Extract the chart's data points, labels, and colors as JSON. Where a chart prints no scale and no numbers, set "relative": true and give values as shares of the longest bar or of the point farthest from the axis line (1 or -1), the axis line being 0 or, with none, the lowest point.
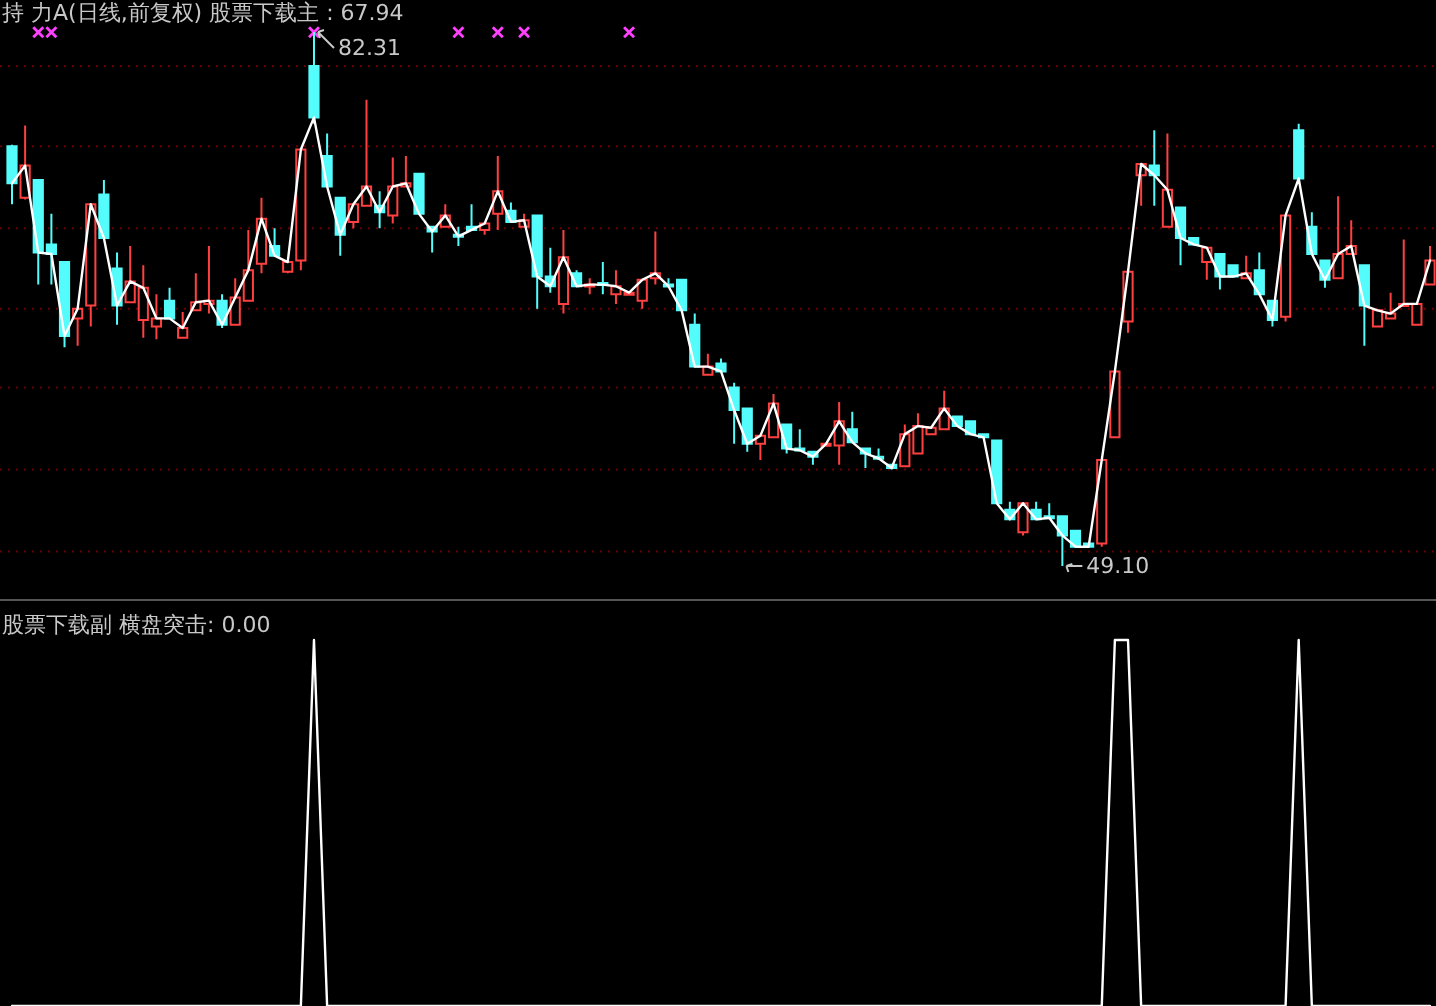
{
  "chart_data": [
    {
      "type": "candlestick",
      "title": "持 力A(日线,前复权) 股票下载主 : 67.94",
      "grid": true,
      "categories": [
        null,
        null,
        null,
        null,
        null,
        null,
        null,
        null,
        null,
        null,
        null,
        null,
        null,
        null,
        null,
        null,
        null,
        null,
        null,
        null,
        null,
        null,
        null,
        null,
        null,
        null,
        null,
        null,
        null,
        null,
        null,
        null,
        null,
        null,
        null,
        null,
        null,
        null,
        null,
        null,
        null,
        null,
        null,
        null,
        null,
        null,
        null,
        null,
        null,
        null,
        null,
        null,
        null,
        null,
        null,
        null,
        null,
        null,
        null,
        null,
        null,
        null,
        null,
        null,
        null,
        null,
        null,
        null,
        null,
        null,
        null,
        null,
        null,
        null,
        null,
        null,
        null,
        null,
        null,
        null,
        null,
        null,
        null,
        null,
        null,
        null,
        null,
        null,
        null,
        null,
        null,
        null,
        null,
        null,
        null,
        null,
        null,
        null,
        null,
        null,
        null,
        null,
        null,
        null,
        null,
        null,
        null,
        null,
        null
      ],
      "ohlc": [
        [
          75.2,
          75.3,
          71.6,
          72.9
        ],
        [
          72.0,
          76.5,
          71.9,
          74.0
        ],
        [
          73.1,
          73.1,
          66.6,
          68.6
        ],
        [
          69.1,
          71.0,
          66.6,
          68.5
        ],
        [
          68.0,
          68.0,
          62.7,
          63.4
        ],
        [
          64.5,
          65.1,
          62.8,
          65.1
        ],
        [
          65.3,
          71.6,
          64.0,
          71.6
        ],
        [
          72.2,
          73.1,
          69.5,
          69.5
        ],
        [
          67.6,
          68.6,
          64.1,
          65.3
        ],
        [
          65.5,
          69.0,
          65.5,
          66.8
        ],
        [
          64.4,
          67.8,
          63.3,
          66.4
        ],
        [
          64.0,
          66.0,
          63.2,
          64.5
        ],
        [
          65.6,
          66.4,
          64.5,
          64.5
        ],
        [
          63.3,
          64.9,
          63.3,
          63.9
        ],
        [
          65.0,
          67.3,
          65.0,
          65.5
        ],
        [
          65.4,
          69.0,
          64.8,
          65.6
        ],
        [
          65.6,
          66.0,
          63.9,
          64.1
        ],
        [
          64.1,
          67.0,
          64.1,
          65.8
        ],
        [
          65.6,
          70.0,
          65.6,
          67.5
        ],
        [
          67.9,
          72.0,
          67.3,
          70.7
        ],
        [
          69.0,
          70.1,
          68.4,
          68.4
        ],
        [
          67.4,
          68.0,
          67.3,
          68.0
        ],
        [
          68.1,
          75.0,
          67.5,
          75.0
        ],
        [
          80.2,
          82.31,
          76.6,
          77.0
        ],
        [
          74.6,
          76.0,
          72.7,
          72.7
        ],
        [
          72.0,
          72.0,
          68.4,
          69.7
        ],
        [
          70.5,
          71.6,
          70.1,
          71.6
        ],
        [
          71.5,
          78.1,
          71.5,
          72.7
        ],
        [
          71.5,
          72.4,
          70.1,
          71.1
        ],
        [
          70.9,
          74.5,
          70.4,
          72.7
        ],
        [
          72.7,
          74.6,
          72.7,
          72.9
        ],
        [
          73.5,
          73.5,
          71.0,
          71.0
        ],
        [
          70.2,
          70.2,
          68.6,
          69.9
        ],
        [
          70.2,
          71.6,
          70.2,
          70.9
        ],
        [
          69.7,
          70.2,
          69.0,
          69.6
        ],
        [
          70.2,
          71.6,
          70.0,
          70.0
        ],
        [
          70.0,
          70.4,
          69.7,
          70.4
        ],
        [
          71.0,
          74.6,
          70.0,
          72.4
        ],
        [
          71.2,
          71.7,
          70.5,
          70.5
        ],
        [
          70.2,
          71.0,
          70.2,
          70.6
        ],
        [
          70.9,
          70.9,
          65.1,
          67.1
        ],
        [
          67.1,
          68.9,
          66.1,
          66.5
        ],
        [
          65.4,
          70.0,
          64.8,
          68.3
        ],
        [
          67.3,
          67.5,
          66.5,
          66.5
        ],
        [
          66.5,
          67.0,
          66.0,
          66.6
        ],
        [
          66.7,
          68.0,
          66.0,
          66.6
        ],
        [
          66.0,
          67.5,
          65.4,
          66.5
        ],
        [
          66.0,
          66.1,
          66.0,
          66.1
        ],
        [
          65.6,
          66.9,
          65.1,
          66.9
        ],
        [
          67.0,
          69.9,
          66.6,
          67.3
        ],
        [
          66.6,
          67.0,
          66.5,
          66.5
        ],
        [
          66.9,
          66.9,
          65.0,
          65.0
        ],
        [
          64.1,
          64.8,
          61.5,
          61.5
        ],
        [
          61.0,
          62.3,
          61.0,
          61.5
        ],
        [
          61.7,
          62.0,
          61.2,
          61.2
        ],
        [
          60.2,
          60.5,
          56.7,
          58.8
        ],
        [
          58.9,
          58.9,
          56.2,
          56.7
        ],
        [
          56.7,
          57.2,
          55.7,
          57.2
        ],
        [
          57.1,
          59.8,
          57.1,
          59.2
        ],
        [
          57.9,
          57.9,
          56.1,
          56.4
        ],
        [
          56.4,
          57.6,
          56.3,
          56.3
        ],
        [
          56.2,
          56.2,
          55.4,
          55.9
        ],
        [
          56.6,
          56.7,
          56.6,
          56.7
        ],
        [
          56.6,
          59.3,
          55.4,
          58.1
        ],
        [
          57.6,
          58.7,
          56.8,
          56.8
        ],
        [
          56.4,
          56.4,
          55.2,
          56.1
        ],
        [
          55.9,
          56.4,
          55.7,
          55.8
        ],
        [
          55.4,
          55.4,
          55.1,
          55.2
        ],
        [
          55.3,
          57.9,
          55.3,
          57.3
        ],
        [
          56.1,
          58.6,
          56.1,
          57.8
        ],
        [
          57.3,
          57.7,
          57.3,
          57.7
        ],
        [
          57.6,
          60.0,
          57.6,
          58.9
        ],
        [
          58.4,
          58.4,
          57.8,
          57.8
        ],
        [
          58.1,
          58.1,
          57.3,
          57.3
        ],
        [
          57.3,
          57.3,
          57.1,
          57.1
        ],
        [
          56.9,
          56.9,
          53.0,
          53.0
        ],
        [
          52.6,
          53.1,
          52.0,
          52.0
        ],
        [
          51.2,
          53.0,
          51.0,
          53.0
        ],
        [
          52.6,
          53.1,
          52.0,
          52.0
        ],
        [
          52.2,
          53.0,
          52.1,
          52.1
        ],
        [
          52.2,
          52.2,
          49.1,
          51.0
        ],
        [
          51.3,
          51.3,
          50.3,
          50.3
        ],
        [
          50.5,
          50.5,
          50.3,
          50.3
        ],
        [
          50.5,
          55.7,
          50.3,
          55.7
        ],
        [
          57.1,
          61.2,
          57.1,
          61.2
        ],
        [
          64.3,
          67.4,
          63.6,
          67.4
        ],
        [
          73.4,
          74.1,
          71.5,
          74.1
        ],
        [
          74.0,
          76.2,
          71.5,
          73.4
        ],
        [
          70.2,
          76.0,
          70.2,
          72.5
        ],
        [
          71.4,
          71.4,
          67.8,
          69.5
        ],
        [
          69.5,
          69.5,
          69.1,
          69.1
        ],
        [
          68.0,
          68.9,
          66.9,
          68.9
        ],
        [
          68.5,
          68.5,
          66.3,
          67.1
        ],
        [
          67.8,
          67.8,
          67.1,
          67.1
        ],
        [
          67.0,
          68.4,
          67.0,
          67.3
        ],
        [
          67.5,
          68.6,
          66.0,
          66.0
        ],
        [
          65.6,
          65.6,
          64.0,
          64.4
        ],
        [
          64.6,
          70.9,
          64.3,
          70.9
        ],
        [
          76.2,
          76.6,
          73.2,
          73.2
        ],
        [
          70.2,
          71.1,
          68.5,
          68.5
        ],
        [
          68.1,
          68.1,
          66.4,
          66.9
        ],
        [
          67.0,
          72.1,
          67.0,
          68.5
        ],
        [
          68.5,
          70.6,
          68.5,
          69.0
        ],
        [
          67.8,
          67.8,
          62.8,
          65.3
        ],
        [
          64.0,
          65.0,
          64.0,
          65.0
        ],
        [
          64.5,
          66.1,
          64.5,
          64.8
        ],
        [
          65.3,
          69.4,
          65.3,
          65.4
        ],
        [
          64.1,
          65.4,
          64.1,
          65.4
        ],
        [
          66.6,
          69.0,
          66.6,
          68.1
        ]
      ],
      "colors": [
        "#54fcfc",
        "#ff4040",
        "#54fcfc",
        "#54fcfc",
        "#54fcfc",
        "#ff4040",
        "#ff4040",
        "#54fcfc",
        "#54fcfc",
        "#ff4040",
        "#ff4040",
        "#ff4040",
        "#54fcfc",
        "#ff4040",
        "#ff4040",
        "#ff4040",
        "#54fcfc",
        "#ff4040",
        "#ff4040",
        "#ff4040",
        "#54fcfc",
        "#ff4040",
        "#ff4040",
        "#54fcfc",
        "#54fcfc",
        "#54fcfc",
        "#ff4040",
        "#ff4040",
        "#54fcfc",
        "#ff4040",
        "#ff4040",
        "#54fcfc",
        "#54fcfc",
        "#ff4040",
        "#54fcfc",
        "#54fcfc",
        "#ff4040",
        "#ff4040",
        "#54fcfc",
        "#ff4040",
        "#54fcfc",
        "#54fcfc",
        "#ff4040",
        "#54fcfc",
        "#ff4040",
        "#54fcfc",
        "#ff4040",
        "#ff4040",
        "#ff4040",
        "#ff4040",
        "#54fcfc",
        "#54fcfc",
        "#54fcfc",
        "#ff4040",
        "#54fcfc",
        "#54fcfc",
        "#54fcfc",
        "#ff4040",
        "#ff4040",
        "#54fcfc",
        "#54fcfc",
        "#54fcfc",
        "#ff4040",
        "#ff4040",
        "#54fcfc",
        "#54fcfc",
        "#54fcfc",
        "#54fcfc",
        "#ff4040",
        "#ff4040",
        "#ff4040",
        "#ff4040",
        "#54fcfc",
        "#54fcfc",
        "#54fcfc",
        "#54fcfc",
        "#54fcfc",
        "#ff4040",
        "#54fcfc",
        "#54fcfc",
        "#54fcfc",
        "#54fcfc",
        "#54fcfc",
        "#ff4040",
        "#ff4040",
        "#ff4040",
        "#ff4040",
        "#54fcfc",
        "#ff4040",
        "#54fcfc",
        "#54fcfc",
        "#ff4040",
        "#54fcfc",
        "#54fcfc",
        "#ff4040",
        "#54fcfc",
        "#54fcfc",
        "#ff4040",
        "#54fcfc",
        "#54fcfc",
        "#54fcfc",
        "#ff4040",
        "#ff4040",
        "#54fcfc",
        "#ff4040",
        "#ff4040",
        "#ff4040",
        "#ff4040",
        "#ff4040"
      ],
      "series": [
        {
          "type": "line",
          "color": "#ffffff",
          "values": [
            72.9,
            74.0,
            68.6,
            68.5,
            63.4,
            65.1,
            71.6,
            69.5,
            65.3,
            66.8,
            66.4,
            64.5,
            64.5,
            63.9,
            65.5,
            65.6,
            64.1,
            65.8,
            67.5,
            70.7,
            68.4,
            68.0,
            75.0,
            77.0,
            72.7,
            69.7,
            71.6,
            72.7,
            71.1,
            72.7,
            72.9,
            71.0,
            69.9,
            70.9,
            69.6,
            70.0,
            70.4,
            72.4,
            70.5,
            70.6,
            67.1,
            66.5,
            68.3,
            66.5,
            66.6,
            66.6,
            66.5,
            66.1,
            66.9,
            67.3,
            66.5,
            65.0,
            61.5,
            61.5,
            61.2,
            58.8,
            56.7,
            57.2,
            59.2,
            56.4,
            56.3,
            55.9,
            56.7,
            58.1,
            56.8,
            56.1,
            55.8,
            55.2,
            57.3,
            57.8,
            57.7,
            58.9,
            57.8,
            57.3,
            57.1,
            53.0,
            52.0,
            53.0,
            52.0,
            52.1,
            51.0,
            50.3,
            50.3,
            55.7,
            61.2,
            67.4,
            74.1,
            73.4,
            72.5,
            69.5,
            69.1,
            68.9,
            67.1,
            67.1,
            67.3,
            66.0,
            64.4,
            70.9,
            73.2,
            68.5,
            66.9,
            68.5,
            69.0,
            65.3,
            65.0,
            64.8,
            65.4,
            65.4,
            68.1
          ]
        },
        {
          "type": "scatter",
          "marker": "cross",
          "color": "#ff40ff",
          "values": [
            null,
            null,
            82.3,
            82.3,
            null,
            null,
            null,
            null,
            null,
            null,
            null,
            null,
            null,
            null,
            null,
            null,
            null,
            null,
            null,
            null,
            null,
            null,
            null,
            82.3,
            null,
            null,
            null,
            null,
            null,
            null,
            null,
            null,
            null,
            null,
            82.3,
            null,
            null,
            82.3,
            null,
            82.3,
            null,
            null,
            null,
            null,
            null,
            null,
            null,
            82.3,
            null,
            null,
            null,
            null,
            null,
            null,
            null,
            null,
            null,
            null,
            null,
            null,
            null,
            null,
            null,
            null,
            null,
            null,
            null,
            null,
            null,
            null,
            null,
            null,
            null,
            null,
            null,
            null,
            null,
            null,
            null,
            null,
            null,
            null,
            null,
            null,
            null,
            null,
            null,
            null,
            null,
            null,
            null,
            null,
            null,
            null,
            null,
            null,
            null,
            null,
            null,
            null,
            null,
            null,
            null,
            null,
            null,
            null,
            null,
            null,
            null
          ]
        }
      ],
      "yticks": [
        {
          "value": 80.2,
          "label": null
        },
        {
          "value": 75.2,
          "label": null
        },
        {
          "value": 70.1,
          "label": null
        },
        {
          "value": 65.1,
          "label": null
        },
        {
          "value": 60.2,
          "label": null
        },
        {
          "value": 55.1,
          "label": null
        },
        {
          "value": 50.0,
          "label": null
        }
      ],
      "annotations": [
        "82.31",
        "49.10"
      ]
    },
    {
      "type": "line",
      "title": "股票下载副  横盘突击: 0.00",
      "relative": true,
      "categories": [
        null,
        null,
        null,
        null,
        null,
        null,
        null,
        null,
        null,
        null,
        null,
        null,
        null,
        null,
        null,
        null,
        null,
        null,
        null,
        null,
        null,
        null,
        null,
        null,
        null,
        null,
        null,
        null,
        null,
        null,
        null,
        null,
        null,
        null,
        null,
        null,
        null,
        null,
        null,
        null,
        null,
        null,
        null,
        null,
        null,
        null,
        null,
        null,
        null,
        null,
        null,
        null,
        null,
        null,
        null,
        null,
        null,
        null,
        null,
        null,
        null,
        null,
        null,
        null,
        null,
        null,
        null,
        null,
        null,
        null,
        null,
        null,
        null,
        null,
        null,
        null,
        null,
        null,
        null,
        null,
        null,
        null,
        null,
        null,
        null,
        null,
        null,
        null,
        null,
        null,
        null,
        null,
        null,
        null,
        null,
        null,
        null,
        null,
        null,
        null,
        null,
        null,
        null,
        null,
        null,
        null,
        null,
        null,
        null
      ],
      "series": [
        {
          "color": "#ffffff",
          "values": [
            0,
            0,
            0,
            0,
            0,
            0,
            0,
            0,
            0,
            0,
            0,
            0,
            0,
            0,
            0,
            0,
            0,
            0,
            0,
            0,
            0,
            0,
            0,
            1,
            0,
            0,
            0,
            0,
            0,
            0,
            0,
            0,
            0,
            0,
            0,
            0,
            0,
            0,
            0,
            0,
            0,
            0,
            0,
            0,
            0,
            0,
            0,
            0,
            0,
            0,
            0,
            0,
            0,
            0,
            0,
            0,
            0,
            0,
            0,
            0,
            0,
            0,
            0,
            0,
            0,
            0,
            0,
            0,
            0,
            0,
            0,
            0,
            0,
            0,
            0,
            0,
            0,
            0,
            0,
            0,
            0,
            0,
            0,
            0,
            1,
            1,
            0,
            0,
            0,
            0,
            0,
            0,
            0,
            0,
            0,
            0,
            0,
            0,
            1,
            0,
            0,
            0,
            0,
            0,
            0,
            0,
            0,
            0,
            0
          ]
        }
      ]
    }
  ]
}
